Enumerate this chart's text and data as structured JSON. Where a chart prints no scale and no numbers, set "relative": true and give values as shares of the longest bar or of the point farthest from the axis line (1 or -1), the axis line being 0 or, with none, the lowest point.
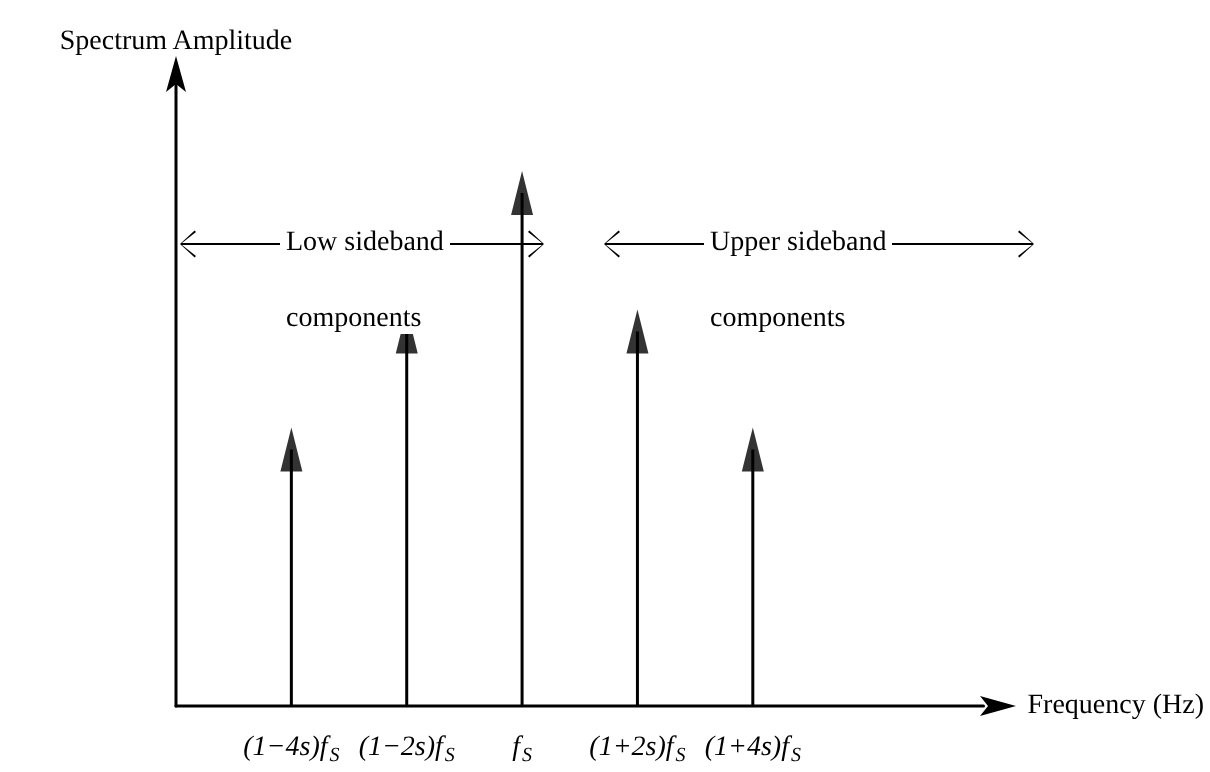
{
  "chart_data": {
    "type": "lollipop",
    "relative": true,
    "marker": "triangle",
    "color": "#000000",
    "xlabel": "Frequency (Hz)",
    "ylabel": "Spectrum Amplitude",
    "categories": [
      null,
      "(1−4s)f$_{S}$",
      "(1−2s)f$_{S}$",
      "f$_{S}$",
      "(1+2s)f$_{S}$",
      "(1+4s)f$_{S}$",
      null,
      null
    ],
    "values": [
      null,
      0.5,
      0.73,
      1,
      0.73,
      0.5,
      null,
      null
    ],
    "annotations": [
      "Low sideband components",
      "Upper sideband components"
    ]
  }
}
